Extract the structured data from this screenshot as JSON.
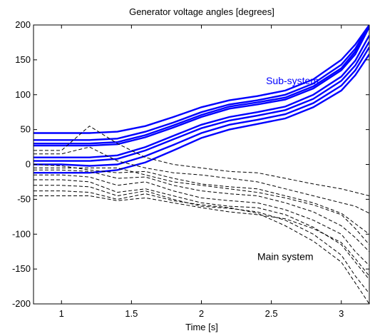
{
  "chart_data": {
    "type": "line",
    "title": "Generator voltage angles [degrees]",
    "xlabel": "Time [s]",
    "ylabel": "",
    "xlim": [
      0.8,
      3.2
    ],
    "ylim": [
      -200,
      200
    ],
    "xticks": [
      1,
      1.5,
      2,
      2.5,
      3
    ],
    "yticks": [
      -200,
      -150,
      -100,
      -50,
      0,
      50,
      100,
      150,
      200
    ],
    "grid": false,
    "colors": {
      "subsystem": "#0000ff",
      "main": "#000000"
    },
    "annotations": [
      {
        "text": "Sub-system",
        "x": 2.65,
        "y": 115,
        "color": "#0000ff"
      },
      {
        "text": "Main system",
        "x": 2.6,
        "y": -137,
        "color": "#000000"
      }
    ],
    "x": [
      0.8,
      1.0,
      1.2,
      1.4,
      1.6,
      1.8,
      2.0,
      2.2,
      2.4,
      2.6,
      2.8,
      3.0,
      3.1,
      3.2
    ],
    "series": [
      {
        "group": "subsystem",
        "style": "solid",
        "values": [
          45,
          45,
          45,
          47,
          55,
          68,
          82,
          92,
          98,
          106,
          122,
          150,
          172,
          200
        ]
      },
      {
        "group": "subsystem",
        "style": "solid",
        "values": [
          35,
          35,
          35,
          37,
          47,
          60,
          75,
          86,
          92,
          100,
          116,
          143,
          166,
          200
        ]
      },
      {
        "group": "subsystem",
        "style": "solid",
        "values": [
          30,
          30,
          30,
          32,
          42,
          56,
          71,
          83,
          89,
          96,
          112,
          138,
          162,
          200
        ]
      },
      {
        "group": "subsystem",
        "style": "solid",
        "values": [
          27,
          27,
          27,
          29,
          39,
          53,
          68,
          80,
          86,
          93,
          109,
          135,
          158,
          197
        ]
      },
      {
        "group": "subsystem",
        "style": "solid",
        "values": [
          10,
          10,
          10,
          13,
          25,
          41,
          57,
          68,
          75,
          83,
          100,
          126,
          149,
          185
        ]
      },
      {
        "group": "subsystem",
        "style": "solid",
        "values": [
          5,
          5,
          5,
          8,
          20,
          36,
          52,
          63,
          70,
          78,
          94,
          120,
          142,
          176
        ]
      },
      {
        "group": "subsystem",
        "style": "solid",
        "values": [
          0,
          0,
          -2,
          0,
          12,
          28,
          45,
          57,
          64,
          72,
          88,
          113,
          135,
          168
        ]
      },
      {
        "group": "subsystem",
        "style": "solid",
        "values": [
          -12,
          -12,
          -12,
          -8,
          3,
          20,
          38,
          50,
          58,
          66,
          82,
          106,
          128,
          158
        ]
      },
      {
        "group": "main",
        "style": "dashed",
        "values": [
          20,
          20,
          55,
          30,
          10,
          0,
          -5,
          -10,
          -12,
          -20,
          -28,
          -35,
          -40,
          -45
        ]
      },
      {
        "group": "main",
        "style": "dashed",
        "values": [
          15,
          15,
          25,
          5,
          -5,
          -12,
          -15,
          -20,
          -25,
          -35,
          -45,
          -55,
          -60,
          -70
        ]
      },
      {
        "group": "main",
        "style": "dashed",
        "values": [
          0,
          -2,
          -8,
          -12,
          -10,
          -20,
          -28,
          -32,
          -35,
          -45,
          -55,
          -70,
          -85,
          -100
        ]
      },
      {
        "group": "main",
        "style": "dashed",
        "values": [
          -8,
          -8,
          -10,
          -20,
          -18,
          -30,
          -38,
          -42,
          -45,
          -55,
          -68,
          -88,
          -105,
          -125
        ]
      },
      {
        "group": "main",
        "style": "dashed",
        "values": [
          -15,
          -15,
          -18,
          -30,
          -25,
          -38,
          -48,
          -52,
          -55,
          -65,
          -80,
          -100,
          -125,
          -145
        ]
      },
      {
        "group": "main",
        "style": "dashed",
        "values": [
          -22,
          -22,
          -25,
          -40,
          -35,
          -45,
          -55,
          -60,
          -62,
          -72,
          -90,
          -115,
          -140,
          -165
        ]
      },
      {
        "group": "main",
        "style": "dashed",
        "values": [
          -30,
          -30,
          -32,
          -45,
          -38,
          -50,
          -60,
          -63,
          -68,
          -80,
          -100,
          -130,
          -160,
          -185
        ]
      },
      {
        "group": "main",
        "style": "dashed",
        "values": [
          -38,
          -38,
          -40,
          -50,
          -42,
          -52,
          -58,
          -62,
          -70,
          -88,
          -110,
          -140,
          -170,
          -200
        ]
      },
      {
        "group": "main",
        "style": "dashed",
        "values": [
          -5,
          -5,
          -5,
          -5,
          -15,
          -25,
          -30,
          -35,
          -40,
          -48,
          -58,
          -72,
          -92,
          -115
        ]
      },
      {
        "group": "main",
        "style": "dashed",
        "values": [
          -45,
          -45,
          -45,
          -52,
          -48,
          -55,
          -62,
          -68,
          -72,
          -78,
          -92,
          -112,
          -135,
          -160
        ]
      }
    ]
  }
}
